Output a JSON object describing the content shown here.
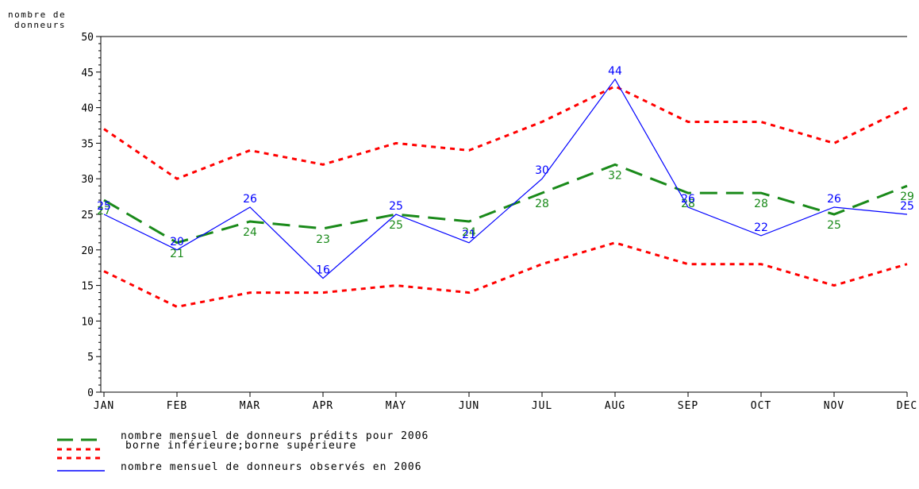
{
  "chart_data": {
    "type": "line",
    "ylabel_line1": "nombre de",
    "ylabel_line2": "donneurs",
    "ylim": [
      0,
      50
    ],
    "yticks": [
      0,
      5,
      10,
      15,
      20,
      25,
      30,
      35,
      40,
      45,
      50
    ],
    "categories": [
      "JAN",
      "FEB",
      "MAR",
      "APR",
      "MAY",
      "JUN",
      "JUL",
      "AUG",
      "SEP",
      "OCT",
      "NOV",
      "DEC"
    ],
    "series": [
      {
        "name": "nombre mensuel de donneurs prédits pour 2006",
        "color": "#1a8a1a",
        "style": "long-dash",
        "values": [
          27,
          21,
          24,
          23,
          25,
          24,
          28,
          32,
          28,
          28,
          25,
          29
        ],
        "labels": true
      },
      {
        "name": "borne inférieure;borne supérieure",
        "color": "#ff0000",
        "style": "dotted",
        "values": [
          17,
          12,
          14,
          14,
          15,
          14,
          18,
          21,
          18,
          18,
          15,
          18
        ],
        "labels": false
      },
      {
        "name": "",
        "color": "#ff0000",
        "style": "dotted",
        "values": [
          37,
          30,
          34,
          32,
          35,
          34,
          38,
          43,
          38,
          38,
          35,
          40
        ],
        "labels": false
      },
      {
        "name": "nombre mensuel de donneurs observés en 2006",
        "color": "#0000ff",
        "style": "solid",
        "values": [
          25,
          20,
          26,
          16,
          25,
          21,
          30,
          44,
          26,
          22,
          26,
          25
        ],
        "labels": true
      }
    ],
    "grid": false,
    "legend_position": "bottom-left"
  },
  "legend": {
    "predicted": "nombre mensuel de donneurs prédits pour 2006",
    "bounds": "borne inférieure;borne supérieure",
    "observed": "nombre mensuel de donneurs observés en 2006"
  }
}
